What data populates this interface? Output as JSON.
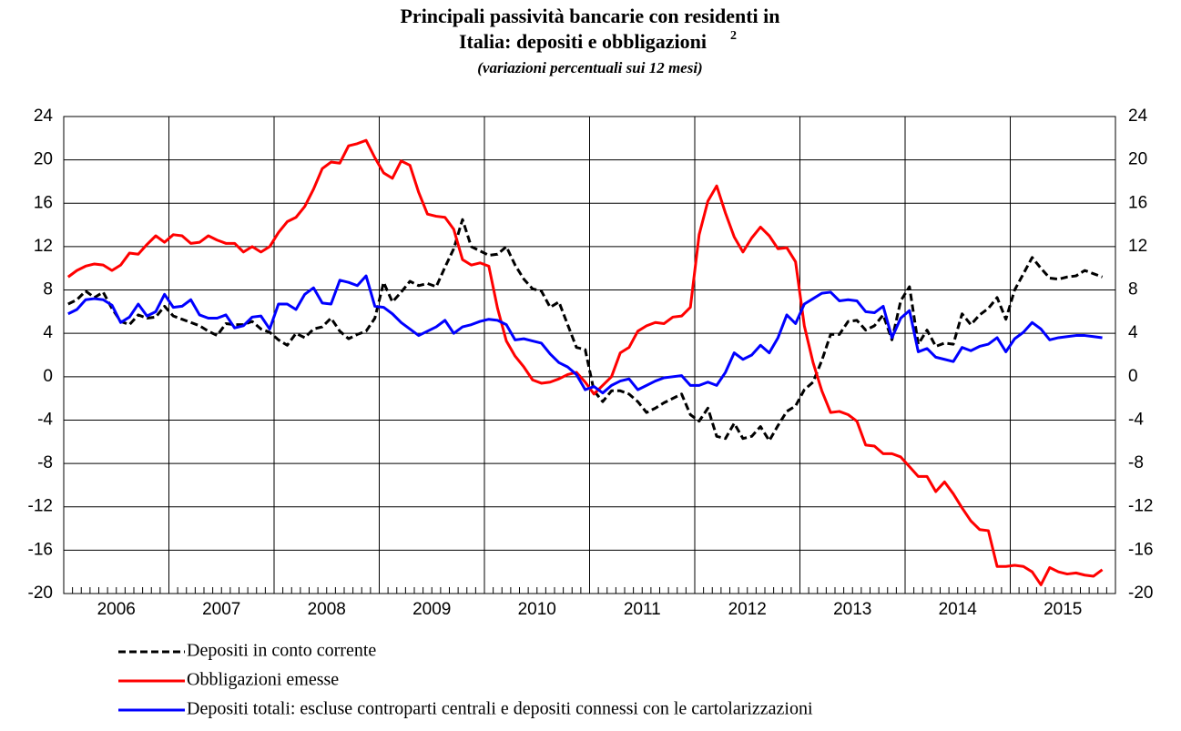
{
  "chart_data": {
    "type": "line",
    "title_lines": [
      "Principali passività bancarie con residenti in",
      "Italia: depositi e obbligazioni"
    ],
    "title_note": "2",
    "subtitle": "(variazioni percentuali sui 12 mesi)",
    "categories": [
      null,
      null,
      null,
      null,
      null,
      null,
      "2006",
      null,
      null,
      null,
      null,
      null,
      null,
      null,
      null,
      null,
      null,
      null,
      "2007",
      null,
      null,
      null,
      null,
      null,
      null,
      null,
      null,
      null,
      null,
      null,
      "2008",
      null,
      null,
      null,
      null,
      null,
      null,
      null,
      null,
      null,
      null,
      null,
      "2009",
      null,
      null,
      null,
      null,
      null,
      null,
      null,
      null,
      null,
      null,
      null,
      "2010",
      null,
      null,
      null,
      null,
      null,
      null,
      null,
      null,
      null,
      null,
      null,
      "2011",
      null,
      null,
      null,
      null,
      null,
      null,
      null,
      null,
      null,
      null,
      null,
      "2012",
      null,
      null,
      null,
      null,
      null,
      null,
      null,
      null,
      null,
      null,
      null,
      "2013",
      null,
      null,
      null,
      null,
      null,
      null,
      null,
      null,
      null,
      null,
      null,
      "2014",
      null,
      null,
      null,
      null,
      null,
      null,
      null,
      null,
      null,
      null,
      null,
      "2015",
      null,
      null,
      null,
      null
    ],
    "ylim": [
      -20,
      24
    ],
    "yticks": [
      -20,
      -16,
      -12,
      -8,
      -4,
      0,
      4,
      8,
      12,
      16,
      20,
      24
    ],
    "grid": true,
    "series": [
      {
        "name": "Depositi in conto corrente",
        "color": "#000000",
        "style": "dashed",
        "values": [
          6.7,
          7.1,
          7.9,
          7.3,
          7.8,
          6.3,
          5.1,
          4.8,
          5.7,
          5.4,
          5.5,
          6.5,
          5.6,
          5.3,
          5,
          4.7,
          4.2,
          3.8,
          4.9,
          4.8,
          4.8,
          5.1,
          4.4,
          4.1,
          3.4,
          2.9,
          4,
          3.6,
          4.4,
          4.6,
          5.4,
          4.2,
          3.5,
          3.9,
          4.2,
          5.4,
          8.7,
          6.9,
          7.8,
          8.8,
          8.4,
          8.6,
          8.3,
          10.1,
          11.8,
          14.5,
          12,
          11.6,
          11.2,
          11.3,
          12,
          10.3,
          9,
          8.1,
          7.9,
          6.4,
          6.9,
          4.8,
          2.7,
          2.5,
          -1.3,
          -2.3,
          -1.3,
          -1.3,
          -1.6,
          -2.3,
          -3.3,
          -2.9,
          -2.4,
          -2,
          -1.6,
          -3.5,
          -4.1,
          -2.9,
          -5.5,
          -5.7,
          -4.3,
          -5.7,
          -5.5,
          -4.6,
          -5.9,
          -4.5,
          -3.2,
          -2.7,
          -1.2,
          -0.5,
          1.5,
          3.9,
          3.9,
          5.1,
          5.2,
          4.3,
          4.7,
          5.7,
          3.4,
          7,
          8.3,
          3,
          4.3,
          2.8,
          3.1,
          3,
          5.8,
          4.8,
          5.7,
          6.3,
          7.3,
          5.3,
          8,
          9.5,
          11,
          10,
          9.1,
          9,
          9.2,
          9.3,
          9.8,
          9.5,
          9.2
        ]
      },
      {
        "name": "Obbligazioni emesse",
        "color": "#ff0000",
        "style": "solid",
        "values": [
          9.2,
          9.8,
          10.2,
          10.4,
          10.3,
          9.8,
          10.3,
          11.4,
          11.3,
          12.2,
          13,
          12.4,
          13.1,
          13,
          12.3,
          12.4,
          13,
          12.6,
          12.3,
          12.3,
          11.5,
          12,
          11.5,
          12,
          13.3,
          14.3,
          14.7,
          15.7,
          17.3,
          19.2,
          19.8,
          19.7,
          21.3,
          21.5,
          21.8,
          20.2,
          18.8,
          18.3,
          19.9,
          19.5,
          17,
          15,
          14.8,
          14.7,
          13.6,
          10.8,
          10.3,
          10.5,
          10.2,
          6.3,
          3.3,
          1.9,
          0.9,
          -0.3,
          -0.6,
          -0.5,
          -0.2,
          0.2,
          0.4,
          -0.5,
          -1.6,
          -0.8,
          0,
          2.2,
          2.7,
          4.2,
          4.7,
          5,
          4.9,
          5.5,
          5.6,
          6.4,
          13.1,
          16.2,
          17.6,
          15.1,
          12.9,
          11.5,
          12.8,
          13.8,
          13,
          11.8,
          11.9,
          10.6,
          4.7,
          1.3,
          -1.3,
          -3.3,
          -3.2,
          -3.5,
          -4.1,
          -6.3,
          -6.4,
          -7.1,
          -7.1,
          -7.4,
          -8.3,
          -9.2,
          -9.2,
          -10.6,
          -9.7,
          -10.8,
          -12.1,
          -13.3,
          -14.1,
          -14.2,
          -17.5,
          -17.5,
          -17.4,
          -17.5,
          -18,
          -19.2,
          -17.6,
          -18,
          -18.2,
          -18.1,
          -18.3,
          -18.4,
          -17.8
        ]
      },
      {
        "name": "Depositi totali: escluse controparti centrali e depositi connessi con le cartolarizzazioni",
        "color": "#0000ff",
        "style": "solid",
        "values": [
          5.8,
          6.2,
          7.1,
          7.2,
          7.1,
          6.6,
          5,
          5.5,
          6.7,
          5.6,
          6,
          7.6,
          6.4,
          6.5,
          7.1,
          5.7,
          5.4,
          5.4,
          5.7,
          4.5,
          4.7,
          5.5,
          5.6,
          4.4,
          6.7,
          6.7,
          6.2,
          7.6,
          8.2,
          6.8,
          6.7,
          8.9,
          8.7,
          8.4,
          9.3,
          6.5,
          6.4,
          5.8,
          5,
          4.4,
          3.8,
          4.2,
          4.6,
          5.2,
          4,
          4.6,
          4.8,
          5.1,
          5.3,
          5.2,
          4.8,
          3.4,
          3.5,
          3.3,
          3.1,
          2.1,
          1.3,
          0.9,
          0.2,
          -1.2,
          -0.9,
          -1.5,
          -0.8,
          -0.4,
          -0.2,
          -1.2,
          -0.8,
          -0.4,
          -0.1,
          0,
          0.1,
          -0.8,
          -0.8,
          -0.5,
          -0.8,
          0.4,
          2.2,
          1.6,
          2,
          2.9,
          2.2,
          3.6,
          5.7,
          4.9,
          6.7,
          7.2,
          7.7,
          7.8,
          7,
          7.1,
          7,
          6,
          5.9,
          6.5,
          3.6,
          5.4,
          6.1,
          2.3,
          2.6,
          1.8,
          1.6,
          1.4,
          2.7,
          2.4,
          2.8,
          3,
          3.6,
          2.3,
          3.5,
          4.1,
          5,
          4.4,
          3.4,
          3.6,
          3.7,
          3.8,
          3.8,
          3.7,
          3.6
        ]
      }
    ]
  }
}
